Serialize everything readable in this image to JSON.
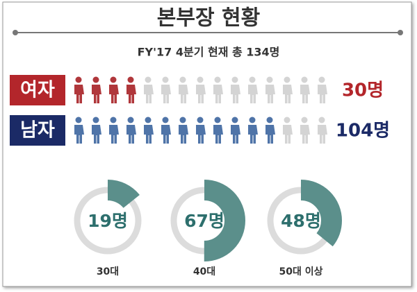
{
  "title": "본부장 현황",
  "subtitle": "FY'17 4분기 현재 총 134명",
  "chart_data": [
    {
      "type": "pictogram",
      "categories": [
        "여자",
        "남자"
      ],
      "values": [
        30,
        104
      ],
      "value_labels": [
        "30명",
        "104명"
      ],
      "colors": [
        "#b0373b",
        "#4f74a8"
      ],
      "label_colors": [
        "#b3262b",
        "#1b2a66"
      ]
    },
    {
      "type": "donut",
      "categories": [
        "30대",
        "40대",
        "50대 이상"
      ],
      "values": [
        19,
        67,
        48
      ],
      "value_labels": [
        "19명",
        "67명",
        "48명"
      ],
      "color": "#5b8f8b"
    }
  ]
}
